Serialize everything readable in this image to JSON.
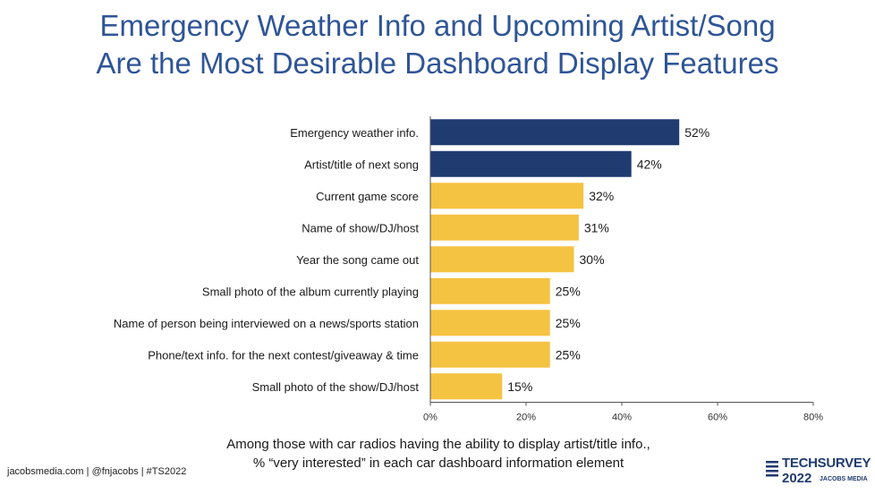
{
  "title_lines": [
    "Emergency Weather Info and Upcoming Artist/Song",
    "Are the Most Desirable Dashboard Display Features"
  ],
  "caption_lines": [
    "Among those with car radios having the ability to display artist/title info.,",
    "% “very interested” in each car dashboard information element"
  ],
  "footer": "jacobsmedia.com   |   @fnjacobs   |   #TS2022",
  "logo": {
    "line1": "TECHSURVEY",
    "line2": "2022",
    "line3": "JACOBS MEDIA",
    "icon": "wave-bars-icon"
  },
  "colors": {
    "title": "#2f5597",
    "highlight": "#1f3b70",
    "default": "#f5c342"
  },
  "chart_data": {
    "type": "bar",
    "orientation": "horizontal",
    "categories": [
      "Emergency weather info.",
      "Artist/title of next song",
      "Current game score",
      "Name of show/DJ/host",
      "Year the song came out",
      "Small photo of the album currently playing",
      "Name of person being interviewed on a news/sports station",
      "Phone/text info. for the next contest/giveaway & time",
      "Small photo of the show/DJ/host"
    ],
    "values": [
      52,
      42,
      32,
      31,
      30,
      25,
      25,
      25,
      15
    ],
    "value_labels": [
      "52%",
      "42%",
      "32%",
      "31%",
      "30%",
      "25%",
      "25%",
      "25%",
      "15%"
    ],
    "highlighted": [
      true,
      true,
      false,
      false,
      false,
      false,
      false,
      false,
      false
    ],
    "xlim": [
      0,
      80
    ],
    "ticks": [
      0,
      20,
      40,
      60,
      80
    ],
    "tick_labels": [
      "0%",
      "20%",
      "40%",
      "60%",
      "80%"
    ],
    "grid": false,
    "legend": "none"
  }
}
